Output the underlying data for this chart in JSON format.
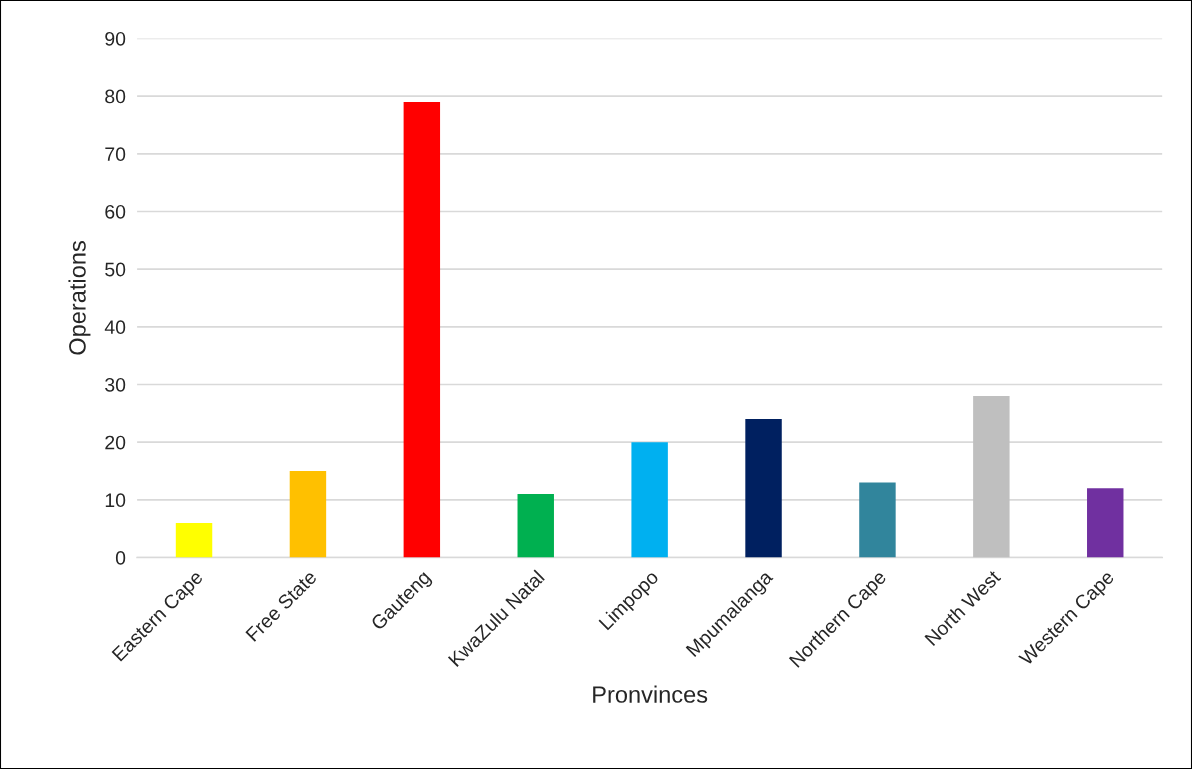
{
  "chart_data": {
    "type": "bar",
    "xlabel": "Pronvinces",
    "ylabel": "Operations",
    "categories": [
      "Eastern Cape",
      "Free State",
      "Gauteng",
      "KwaZulu Natal",
      "Limpopo",
      "Mpumalanga",
      "Northern Cape",
      "North West",
      "Western Cape"
    ],
    "values": [
      6,
      15,
      79,
      11,
      20,
      24,
      13,
      28,
      12
    ],
    "colors": [
      "#ffff00",
      "#ffc000",
      "#ff0000",
      "#00b050",
      "#00b0f0",
      "#002060",
      "#31859c",
      "#bfbfbf",
      "#7030a0"
    ],
    "ylim": [
      0,
      90
    ],
    "yticks": [
      0,
      10,
      20,
      30,
      40,
      50,
      60,
      70,
      80,
      90
    ],
    "grid": "y",
    "legend": false
  }
}
